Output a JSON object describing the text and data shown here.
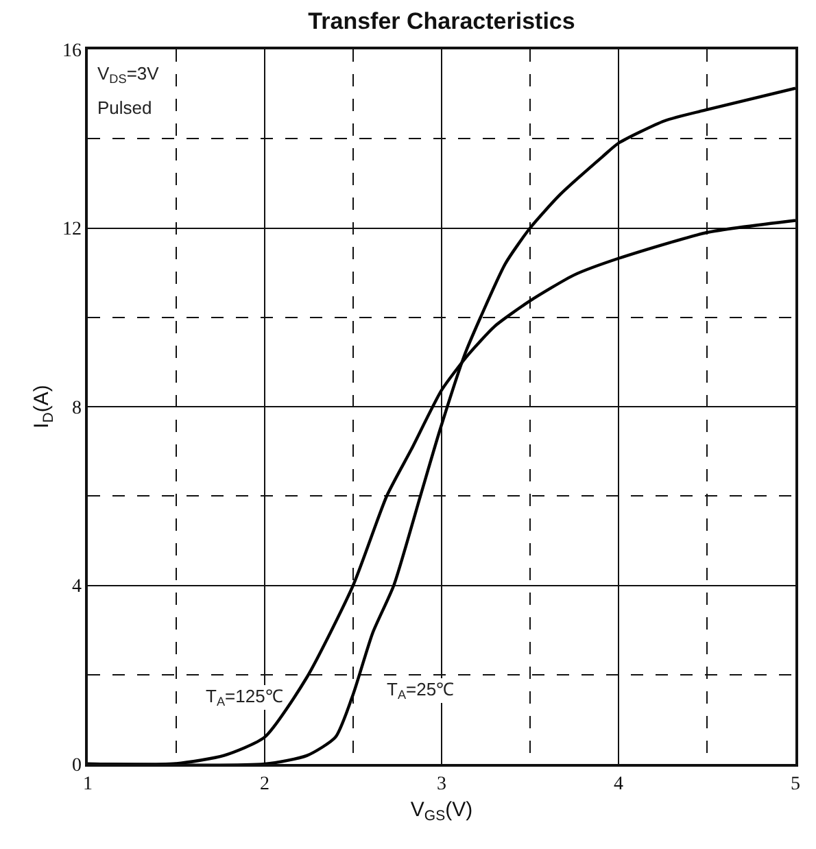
{
  "chart_data": {
    "type": "line",
    "title": "Transfer Characteristics",
    "xlabel": "V$_{GS}$(V)",
    "ylabel": "I$_{D}$(A)",
    "annotations": [
      "V$_{DS}$=3V",
      "Pulsed"
    ],
    "xlim": [
      1,
      5
    ],
    "ylim": [
      0,
      16
    ],
    "xticks": [
      1,
      {
        "value": 1.5,
        "label": null
      },
      2,
      {
        "value": 2.5,
        "label": null
      },
      3,
      {
        "value": 3.5,
        "label": null
      },
      4,
      {
        "value": 4.5,
        "label": null
      },
      5
    ],
    "yticks": [
      0,
      {
        "value": 2,
        "label": null
      },
      4,
      {
        "value": 6,
        "label": null
      },
      8,
      {
        "value": 10,
        "label": null
      },
      12,
      {
        "value": 14,
        "label": null
      },
      16
    ],
    "grid": true,
    "legend": false,
    "marker": "none",
    "line_style": "solid",
    "series": [
      {
        "name": "T$_{A}$=125℃",
        "color": "#000000",
        "x": [
          1,
          1.5,
          1.77,
          2.0,
          2.24,
          2.5,
          2.69,
          2.83,
          3.0,
          3.15,
          3.3,
          3.5,
          3.75,
          4.0,
          4.5,
          5.0
        ],
        "values": [
          0,
          0.01,
          0.19,
          0.6,
          1.95,
          4.0,
          6.0,
          7.05,
          8.37,
          9.16,
          9.8,
          10.37,
          10.95,
          11.32,
          11.9,
          12.17
        ]
      },
      {
        "name": "T$_{A}$=25℃",
        "color": "#000000",
        "x": [
          1,
          2.0,
          2.24,
          2.4,
          2.5,
          2.61,
          2.73,
          2.88,
          2.99,
          3.13,
          3.22,
          3.36,
          3.5,
          3.67,
          3.91,
          4.0,
          4.26,
          4.5,
          5.0
        ],
        "values": [
          0,
          0,
          0.19,
          0.6,
          1.56,
          2.93,
          4.0,
          6.0,
          7.47,
          9.16,
          10.0,
          11.2,
          12.0,
          12.75,
          13.6,
          13.9,
          14.4,
          14.65,
          15.13
        ]
      }
    ]
  }
}
